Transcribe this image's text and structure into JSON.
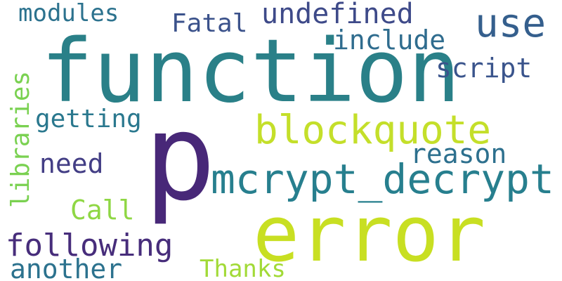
{
  "word_cloud": {
    "words": [
      {
        "text": "function",
        "color": "#2a8088"
      },
      {
        "text": "p",
        "color": "#482878"
      },
      {
        "text": "error",
        "color": "#c8df22"
      },
      {
        "text": "mcrypt_decrypt",
        "color": "#277f8e"
      },
      {
        "text": "blockquote",
        "color": "#c4df2a"
      },
      {
        "text": "use",
        "color": "#355f8d"
      },
      {
        "text": "undefined",
        "color": "#3e4a89"
      },
      {
        "text": "modules",
        "color": "#2c728e"
      },
      {
        "text": "Fatal",
        "color": "#3b528b"
      },
      {
        "text": "include",
        "color": "#2f6c8e"
      },
      {
        "text": "script",
        "color": "#3a548c"
      },
      {
        "text": "libraries",
        "color": "#7ad151"
      },
      {
        "text": "getting",
        "color": "#2a788e"
      },
      {
        "text": "reason",
        "color": "#2d708e"
      },
      {
        "text": "need",
        "color": "#433e85"
      },
      {
        "text": "Call",
        "color": "#8fd744"
      },
      {
        "text": "following",
        "color": "#472d7b"
      },
      {
        "text": "another",
        "color": "#2c728e"
      },
      {
        "text": "Thanks",
        "color": "#a2da37"
      }
    ]
  }
}
